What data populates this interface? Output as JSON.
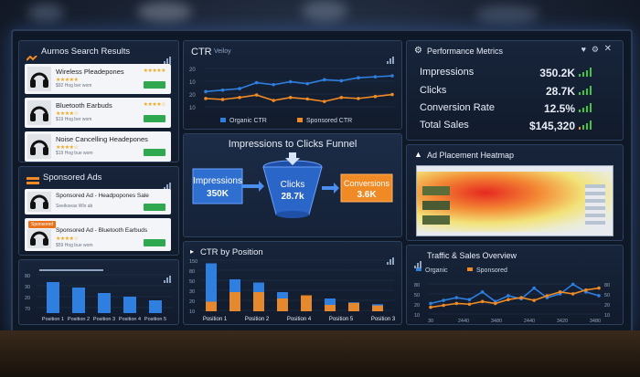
{
  "search_results": {
    "title": "Aurnos Search Results",
    "items": [
      {
        "name": "Wireless Pleadepones",
        "sub": "Seeikoeas Wlo ab",
        "meta": "$92 Hog ber wom",
        "stars": "★★★★★"
      },
      {
        "name": "Bluetooth Earbuds",
        "sub": "Sendoe leas Wlo ab",
        "meta": "$19 Hog ber wom",
        "stars": "★★★★☆"
      },
      {
        "name": "Noise Cancelling Headepones",
        "sub": "Seeikoeas Wlo ab",
        "meta": "$19 Hog bue wom",
        "stars": "★★★★☆"
      }
    ]
  },
  "sponsored": {
    "title": "Sponsored Ads",
    "items": [
      {
        "name": "Sponsored Ad - Headpopones Sale",
        "sub": "Seeikoeas Wlo ab",
        "meta": "$99 Hog ber wom",
        "stars": "★★★★☆",
        "tag": ""
      },
      {
        "name": "Sponsored Ad - Bluetooth Earbuds",
        "sub": "Seeikoeas Wlo ab",
        "meta": "$59 Hog bue wom",
        "stars": "★★★★☆",
        "tag": "Sponsored"
      }
    ],
    "chart": {
      "ylabels": [
        "80",
        "30",
        "20",
        "70"
      ],
      "xlabels": [
        "Position 1",
        "Position 2",
        "Position 3",
        "Position 4",
        "Position 5"
      ],
      "values": [
        34,
        28,
        22,
        18,
        14
      ]
    }
  },
  "ctr_panel": {
    "title": "CTR",
    "subtitle": "Veiloy",
    "ylabels": [
      "20",
      "10",
      "20",
      "10"
    ],
    "legend": [
      "Organic CTR",
      "Sponsored CTR"
    ],
    "organic": [
      42,
      45,
      48,
      60,
      56,
      62,
      58,
      66,
      64,
      70,
      72,
      74
    ],
    "sponsored": [
      28,
      26,
      30,
      35,
      24,
      30,
      27,
      22,
      30,
      28,
      32,
      36
    ]
  },
  "funnel": {
    "title": "Impressions to Clicks Funnel",
    "impressions_label": "Impressions",
    "impressions_value": "350K",
    "clicks_label": "Clicks",
    "clicks_value": "28.7k",
    "conversions_label": "Conversions",
    "conversions_value": "3.6K"
  },
  "ctr_position": {
    "title": "CTR by Position",
    "ylabels": [
      "150",
      "80",
      "50",
      "30",
      "20",
      "10"
    ],
    "xlabels": [
      "Position 1",
      "Position 2",
      "Position 4",
      "Position 5",
      "Position 3"
    ],
    "organic": [
      150,
      100,
      90,
      60,
      45,
      40,
      28,
      22
    ],
    "sponsored": [
      30,
      60,
      60,
      40,
      50,
      20,
      26,
      18
    ]
  },
  "performance": {
    "title": "Performance Metrics",
    "rows": [
      {
        "label": "Impressions",
        "value": "350.2K"
      },
      {
        "label": "Clicks",
        "value": "28.7K"
      },
      {
        "label": "Conversion Rate",
        "value": "12.5%"
      },
      {
        "label": "Total Sales",
        "value": "$145,320"
      }
    ]
  },
  "heatmap": {
    "title": "Ad Placement Heatmap"
  },
  "traffic": {
    "title": "Traffic & Sales Overview",
    "legend": [
      "Organic",
      "Sponsored"
    ],
    "ylabels": [
      "80",
      "50",
      "20",
      "10"
    ],
    "xlabels": [
      "30",
      "2440",
      "3480",
      "2440",
      "3420",
      "3480"
    ],
    "organic": [
      30,
      38,
      45,
      40,
      60,
      35,
      50,
      42,
      70,
      45,
      55,
      80,
      60,
      50
    ],
    "sponsored": [
      20,
      25,
      30,
      28,
      35,
      30,
      40,
      45,
      38,
      50,
      60,
      55,
      65,
      70
    ]
  },
  "colors": {
    "accent_blue": "#2f7fe0",
    "accent_orange": "#f08a24",
    "green": "#3fc64a"
  }
}
